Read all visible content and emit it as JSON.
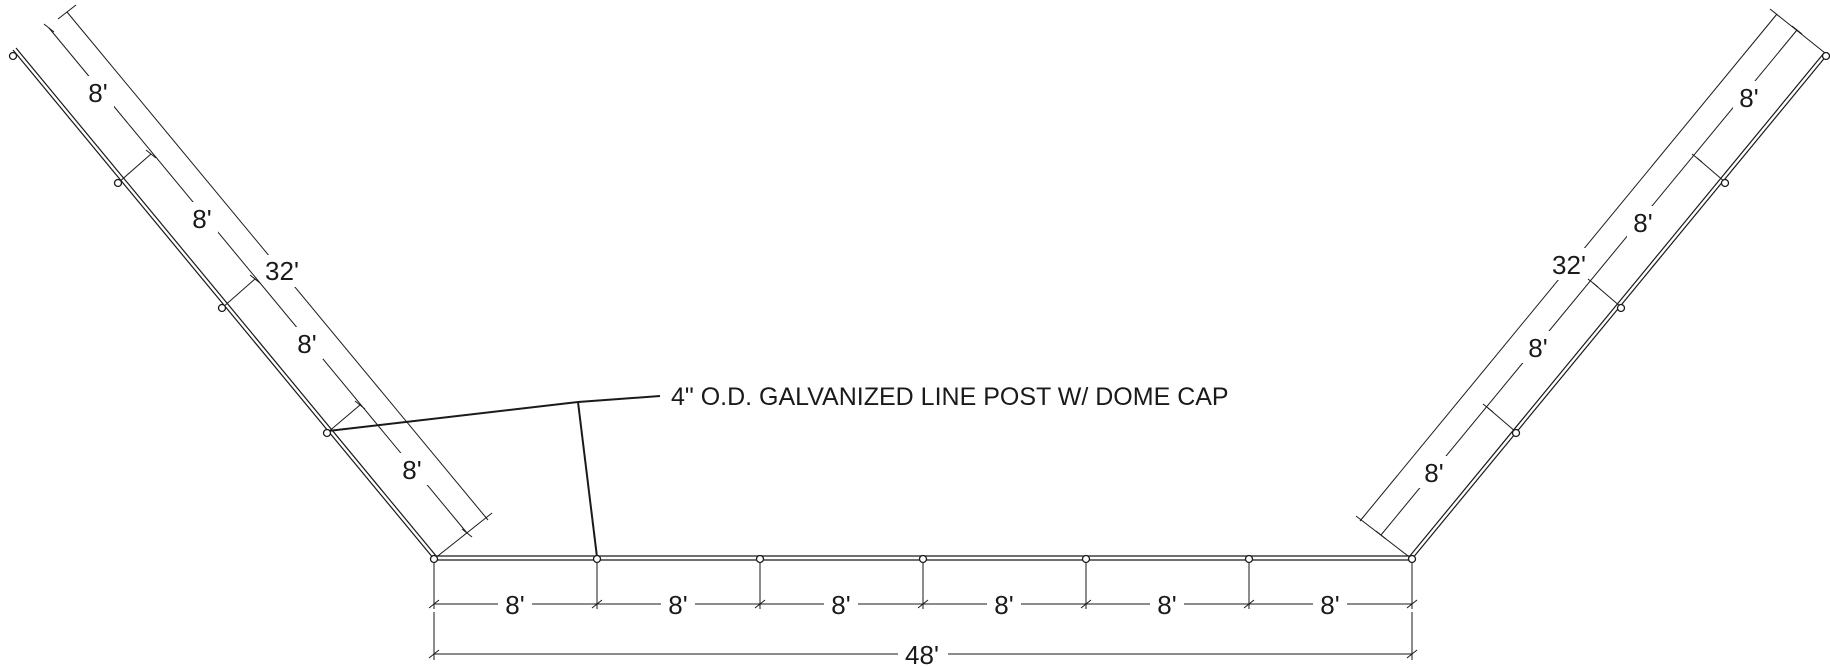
{
  "callout": {
    "text": "4\" O.D. GALVANIZED LINE POST W/ DOME CAP"
  },
  "left_run": {
    "segments": [
      "8'",
      "8'",
      "8'",
      "8'"
    ],
    "total": "32'"
  },
  "bottom_run": {
    "segments": [
      "8'",
      "8'",
      "8'",
      "8'",
      "8'",
      "8'"
    ],
    "total": "48'"
  },
  "right_run": {
    "segments": [
      "8'",
      "8'",
      "8'",
      "8'"
    ],
    "total": "32'"
  }
}
